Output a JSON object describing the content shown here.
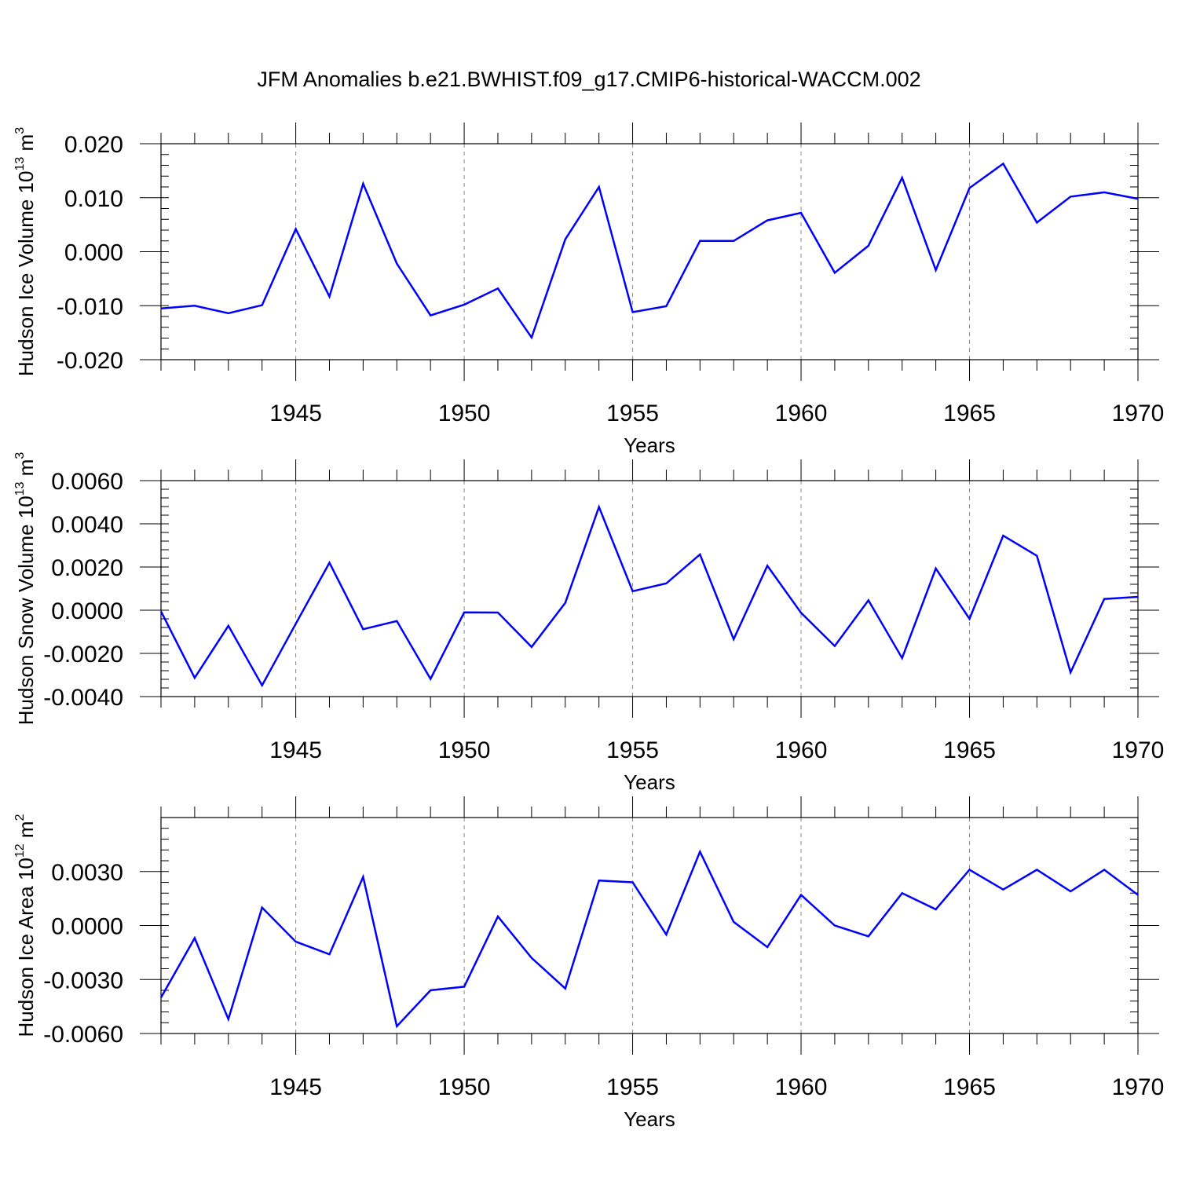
{
  "title": "JFM Anomalies b.e21.BWHIST.f09_g17.CMIP6-historical-WACCM.002",
  "colors": {
    "series": "#0000ff",
    "axis": "#000000",
    "grid": "#888888"
  },
  "chart_data": [
    {
      "type": "line",
      "ylabel_main": "Hudson Ice Volume 10",
      "ylabel_sup": "13",
      "ylabel_unit": " m",
      "ylabel_unit_sup": "3",
      "xlabel": "Years",
      "xlim": [
        1941,
        1970
      ],
      "ylim": [
        -0.02,
        0.02
      ],
      "xticks": [
        "1945",
        "1950",
        "1955",
        "1960",
        "1965",
        "1970"
      ],
      "xtick_values": [
        1945,
        1950,
        1955,
        1960,
        1965,
        1970
      ],
      "yticks": [
        "0.020",
        "0.010",
        "0.000",
        "-0.010",
        "-0.020"
      ],
      "ytick_values": [
        0.02,
        0.01,
        0.0,
        -0.01,
        -0.02
      ],
      "grid": "vertical-dashed",
      "x": [
        1941,
        1942,
        1943,
        1944,
        1945,
        1946,
        1947,
        1948,
        1949,
        1950,
        1951,
        1952,
        1953,
        1954,
        1955,
        1956,
        1957,
        1958,
        1959,
        1960,
        1961,
        1962,
        1963,
        1964,
        1965,
        1966,
        1967,
        1968,
        1969,
        1970
      ],
      "values": [
        -0.0105,
        -0.01,
        -0.0114,
        -0.0099,
        0.0042,
        -0.0083,
        0.0126,
        -0.0022,
        -0.0118,
        -0.0098,
        -0.0068,
        -0.0159,
        0.0023,
        0.012,
        -0.0112,
        -0.0101,
        0.002,
        0.002,
        0.0058,
        0.0072,
        -0.0039,
        0.0011,
        0.0137,
        -0.0034,
        0.0118,
        0.0163,
        0.0054,
        0.0102,
        0.011,
        0.0098
      ]
    },
    {
      "type": "line",
      "ylabel_main": "Hudson Snow Volume 10",
      "ylabel_sup": "13",
      "ylabel_unit": " m",
      "ylabel_unit_sup": "3",
      "xlabel": "Years",
      "xlim": [
        1941,
        1970
      ],
      "ylim": [
        -0.004,
        0.006
      ],
      "xticks": [
        "1945",
        "1950",
        "1955",
        "1960",
        "1965",
        "1970"
      ],
      "xtick_values": [
        1945,
        1950,
        1955,
        1960,
        1965,
        1970
      ],
      "yticks": [
        "0.0060",
        "0.0040",
        "0.0020",
        "0.0000",
        "-0.0020",
        "-0.0040"
      ],
      "ytick_values": [
        0.006,
        0.004,
        0.002,
        0.0,
        -0.002,
        -0.004
      ],
      "grid": "vertical-dashed",
      "x": [
        1941,
        1942,
        1943,
        1944,
        1945,
        1946,
        1947,
        1948,
        1949,
        1950,
        1951,
        1952,
        1953,
        1954,
        1955,
        1956,
        1957,
        1958,
        1959,
        1960,
        1961,
        1962,
        1963,
        1964,
        1965,
        1966,
        1967,
        1968,
        1969,
        1970
      ],
      "values": [
        -5e-05,
        -0.00313,
        -0.00072,
        -0.00348,
        -0.00063,
        0.0022,
        -0.00088,
        -0.0005,
        -0.00318,
        -0.0001,
        -0.00011,
        -0.0017,
        0.00034,
        0.00478,
        0.00088,
        0.00124,
        0.00258,
        -0.00134,
        0.00206,
        -0.00012,
        -0.00166,
        0.00046,
        -0.00222,
        0.00193,
        -0.0004,
        0.00345,
        0.00252,
        -0.00288,
        0.00052,
        0.00062
      ]
    },
    {
      "type": "line",
      "ylabel_main": "Hudson Ice Area 10",
      "ylabel_sup": "12",
      "ylabel_unit": " m",
      "ylabel_unit_sup": "2",
      "xlabel": "Years",
      "xlim": [
        1941,
        1970
      ],
      "ylim": [
        -0.006,
        0.006
      ],
      "xticks": [
        "1945",
        "1950",
        "1955",
        "1960",
        "1965",
        "1970"
      ],
      "xtick_values": [
        1945,
        1950,
        1955,
        1960,
        1965,
        1970
      ],
      "yticks": [
        "0.0030",
        "0.0000",
        "-0.0030",
        "-0.0060"
      ],
      "ytick_values": [
        0.003,
        0.0,
        -0.003,
        -0.006
      ],
      "grid": "vertical-dashed",
      "x": [
        1941,
        1942,
        1943,
        1944,
        1945,
        1946,
        1947,
        1948,
        1949,
        1950,
        1951,
        1952,
        1953,
        1954,
        1955,
        1956,
        1957,
        1958,
        1959,
        1960,
        1961,
        1962,
        1963,
        1964,
        1965,
        1966,
        1967,
        1968,
        1969,
        1970
      ],
      "values": [
        -0.004,
        -0.0007,
        -0.0052,
        0.001,
        -0.0009,
        -0.0016,
        0.0027,
        -0.0056,
        -0.0036,
        -0.0034,
        0.0005,
        -0.0018,
        -0.0035,
        0.0025,
        0.0024,
        -0.0005,
        0.0041,
        0.0002,
        -0.0012,
        0.0017,
        0.0,
        -0.0006,
        0.0018,
        0.0009,
        0.0031,
        0.002,
        0.0031,
        0.0019,
        0.0031,
        0.0017
      ]
    }
  ]
}
